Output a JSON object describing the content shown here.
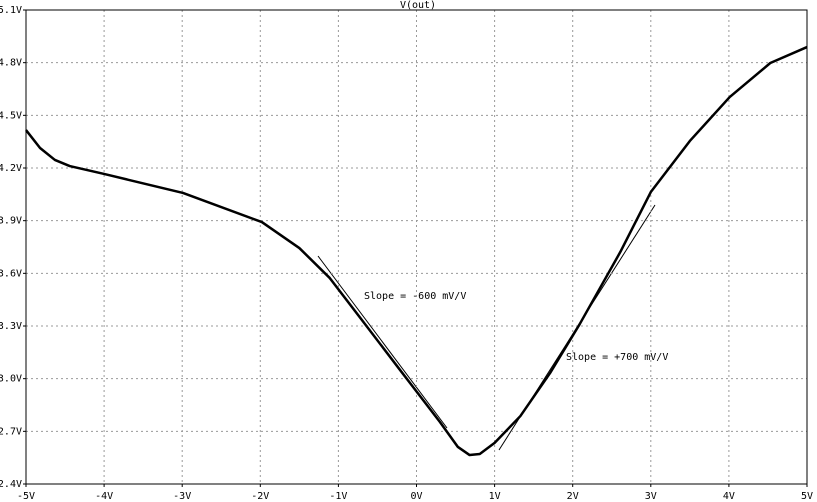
{
  "chart_data": {
    "type": "line",
    "title": "V(out)",
    "x": [
      -5,
      -4.82,
      -4.63,
      -4.44,
      -4.0,
      -2.99,
      -1.98,
      -1.5,
      -1.11,
      -0.72,
      -0.21,
      0.3,
      0.53,
      0.68,
      0.81,
      1.0,
      1.33,
      1.71,
      2.09,
      2.61,
      3.0,
      3.5,
      4.01,
      4.53,
      5.0
    ],
    "series": [
      {
        "name": "V(out)",
        "color": "#000000",
        "values": [
          4.416,
          4.314,
          4.246,
          4.211,
          4.166,
          4.058,
          3.892,
          3.744,
          3.573,
          3.346,
          3.049,
          2.753,
          2.611,
          2.565,
          2.571,
          2.634,
          2.787,
          3.032,
          3.311,
          3.722,
          4.063,
          4.354,
          4.604,
          4.798,
          4.889
        ]
      }
    ],
    "xlim": [
      -5,
      5
    ],
    "ylim": [
      2.4,
      5.1
    ],
    "xticks": [
      {
        "value": -5,
        "label": "-5V"
      },
      {
        "value": -4,
        "label": "-4V"
      },
      {
        "value": -3,
        "label": "-3V"
      },
      {
        "value": -2,
        "label": "-2V"
      },
      {
        "value": -1,
        "label": "-1V"
      },
      {
        "value": 0,
        "label": "0V"
      },
      {
        "value": 1,
        "label": "1V"
      },
      {
        "value": 2,
        "label": "2V"
      },
      {
        "value": 3,
        "label": "3V"
      },
      {
        "value": 4,
        "label": "4V"
      },
      {
        "value": 5,
        "label": "5V"
      }
    ],
    "yticks": [
      {
        "value": 2.4,
        "label": "2.4V"
      },
      {
        "value": 2.7,
        "label": "2.7V"
      },
      {
        "value": 3.0,
        "label": "3.0V"
      },
      {
        "value": 3.3,
        "label": "3.3V"
      },
      {
        "value": 3.6,
        "label": "3.6V"
      },
      {
        "value": 3.9,
        "label": "3.9V"
      },
      {
        "value": 4.2,
        "label": "4.2V"
      },
      {
        "value": 4.5,
        "label": "4.5V"
      },
      {
        "value": 4.8,
        "label": "4.8V"
      },
      {
        "value": 5.1,
        "label": "5.1V"
      }
    ],
    "grid": true,
    "annotations": [
      "Slope = -600 mV/V",
      "Slope = +700 mV/V"
    ]
  }
}
